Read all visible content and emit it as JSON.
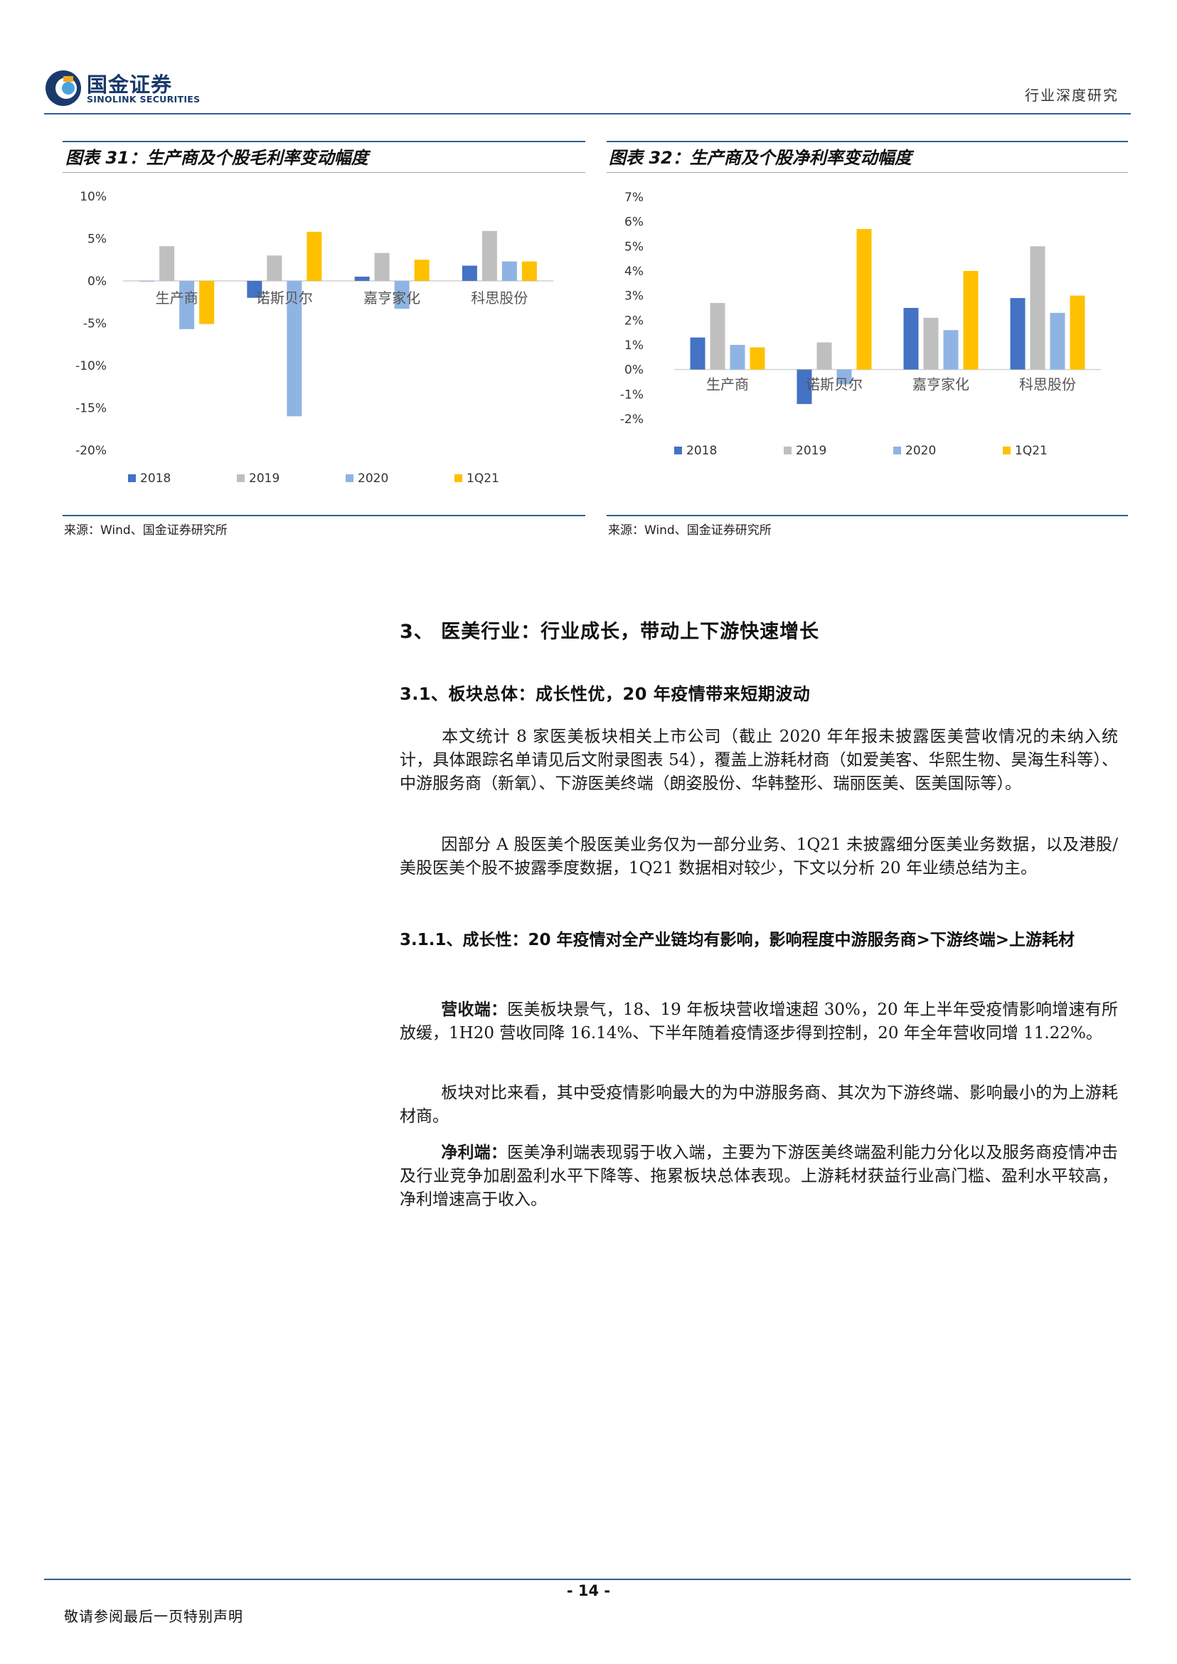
{
  "header": {
    "logo_cn": "国金证券",
    "logo_en": "SINOLINK SECURITIES",
    "report_type": "行业深度研究"
  },
  "colors": {
    "s2018": "#4472c4",
    "s2019": "#bfbfbf",
    "s2020": "#8fb4e3",
    "s1q21": "#ffc000",
    "rule": "#2d5f93"
  },
  "figure31": {
    "title": "图表 31：生产商及个股毛利率变动幅度",
    "source": "来源：Wind、国金证券研究所"
  },
  "figure32": {
    "title": "图表 32：生产商及个股净利率变动幅度",
    "source": "来源：Wind、国金证券研究所"
  },
  "chart_data": [
    {
      "type": "bar",
      "categories": [
        "生产商",
        "诺斯贝尔",
        "嘉亨家化",
        "科思股份"
      ],
      "series": [
        {
          "name": "2018",
          "values": [
            0.0,
            -2.0,
            0.5,
            1.8
          ]
        },
        {
          "name": "2019",
          "values": [
            4.1,
            3.0,
            3.3,
            5.9
          ]
        },
        {
          "name": "2020",
          "values": [
            -5.7,
            -16.0,
            -3.3,
            2.3
          ]
        },
        {
          "name": "1Q21",
          "values": [
            -5.1,
            5.8,
            2.5,
            2.3
          ]
        }
      ],
      "yticks": [
        "10%",
        "5%",
        "0%",
        "-5%",
        "-10%",
        "-15%",
        "-20%"
      ],
      "ylim": [
        -20,
        10
      ],
      "legend": "bottom"
    },
    {
      "type": "bar",
      "categories": [
        "生产商",
        "诺斯贝尔",
        "嘉亨家化",
        "科思股份"
      ],
      "series": [
        {
          "name": "2018",
          "values": [
            1.3,
            -1.4,
            2.5,
            2.9
          ]
        },
        {
          "name": "2019",
          "values": [
            2.7,
            1.1,
            2.1,
            5.0
          ]
        },
        {
          "name": "2020",
          "values": [
            1.0,
            -0.6,
            1.6,
            2.3
          ]
        },
        {
          "name": "1Q21",
          "values": [
            0.9,
            5.7,
            4.0,
            3.0
          ]
        }
      ],
      "yticks": [
        "7%",
        "6%",
        "5%",
        "4%",
        "3%",
        "2%",
        "1%",
        "0%",
        "-1%",
        "-2%"
      ],
      "ylim": [
        -2,
        7
      ],
      "legend": "bottom"
    }
  ],
  "section": {
    "h1": "3、 医美行业：行业成长，带动上下游快速增长",
    "h2": "3.1、板块总体：成长性优，20 年疫情带来短期波动",
    "p1": "本文统计 8 家医美板块相关上市公司（截止 2020 年年报未披露医美营收情况的未纳入统计，具体跟踪名单请见后文附录图表 54），覆盖上游耗材商（如爱美客、华熙生物、昊海生科等）、中游服务商（新氧）、下游医美终端（朗姿股份、华韩整形、瑞丽医美、医美国际等）。",
    "p2": "因部分 A 股医美个股医美业务仅为一部分业务、1Q21 未披露细分医美业务数据，以及港股/美股医美个股不披露季度数据，1Q21 数据相对较少，下文以分析 20 年业绩总结为主。",
    "h3": "3.1.1、成长性：20 年疫情对全产业链均有影响，影响程度中游服务商>下游终端>上游耗材",
    "p3_lead": "营收端：",
    "p3": "医美板块景气，18、19 年板块营收增速超 30%，20 年上半年受疫情影响增速有所放缓，1H20 营收同降 16.14%、下半年随着疫情逐步得到控制，20 年全年营收同增 11.22%。",
    "p4": "板块对比来看，其中受疫情影响最大的为中游服务商、其次为下游终端、影响最小的为上游耗材商。",
    "p5_lead": "净利端：",
    "p5": "医美净利端表现弱于收入端，主要为下游医美终端盈利能力分化以及服务商疫情冲击及行业竞争加剧盈利水平下降等、拖累板块总体表现。上游耗材获益行业高门槛、盈利水平较高，净利增速高于收入。"
  },
  "footer": {
    "page": "- 14 -",
    "note": "敬请参阅最后一页特别声明"
  }
}
